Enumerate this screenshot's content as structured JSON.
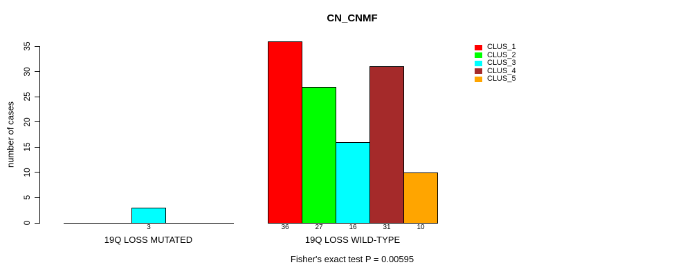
{
  "chart_data": {
    "type": "bar",
    "title": "CN_CNMF",
    "ylabel": "number of cases",
    "ylim": [
      0,
      35
    ],
    "yticks": [
      0,
      5,
      10,
      15,
      20,
      25,
      30,
      35
    ],
    "categories": [
      "19Q LOSS MUTATED",
      "19Q LOSS WILD-TYPE"
    ],
    "series": [
      {
        "name": "CLUS_1",
        "color": "#ff0000",
        "values": [
          0,
          36
        ]
      },
      {
        "name": "CLUS_2",
        "color": "#00ff00",
        "values": [
          0,
          27
        ]
      },
      {
        "name": "CLUS_3",
        "color": "#00ffff",
        "values": [
          3,
          16
        ]
      },
      {
        "name": "CLUS_4",
        "color": "#a52a2a",
        "values": [
          0,
          31
        ]
      },
      {
        "name": "CLUS_5",
        "color": "#ffa500",
        "values": [
          0,
          10
        ]
      }
    ],
    "bar_value_labels": {
      "shown": true,
      "hide_zeros": true
    },
    "legend": {
      "position": "right",
      "entries": [
        "CLUS_1",
        "CLUS_2",
        "CLUS_3",
        "CLUS_4",
        "CLUS_5"
      ]
    },
    "annotation": "Fisher's exact test P = 0.00595",
    "grid": false,
    "axis_color": "#000000",
    "bar_border_color": "#000000",
    "background": "#ffffff"
  }
}
